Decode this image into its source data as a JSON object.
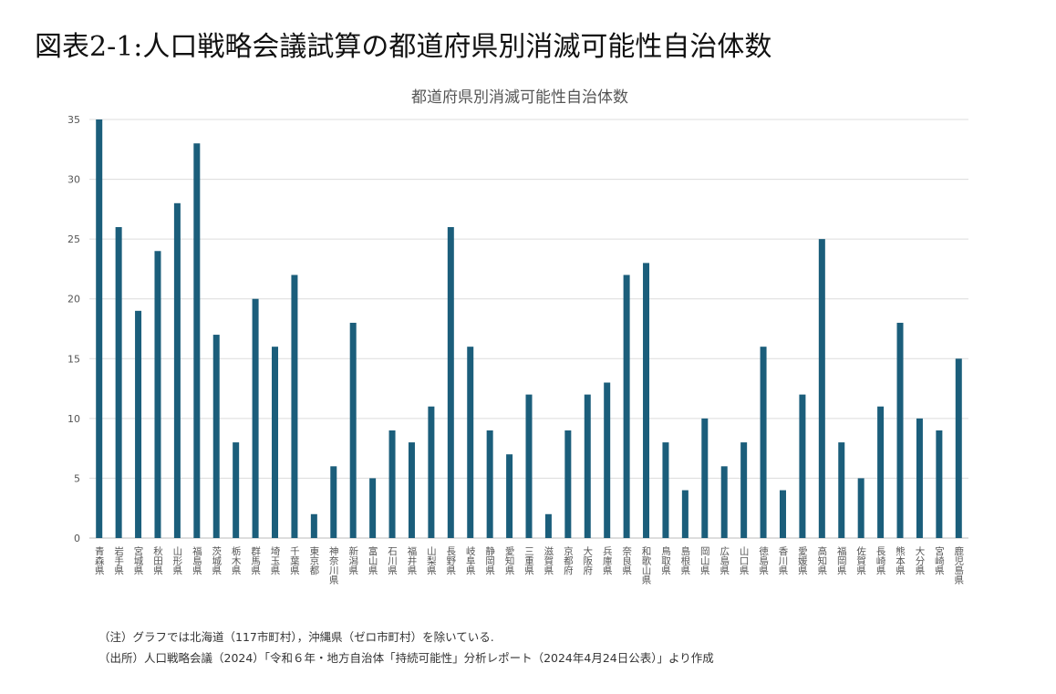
{
  "figure_title": "図表2-1:人口戦略会議試算の都道府県別消滅可能性自治体数",
  "notes": {
    "note": "（注）グラフでは北海道（117市町村），沖縄県（ゼロ市町村）を除いている.",
    "source": "（出所）人口戦略会議（2024）「令和６年・地方自治体「持続可能性」分析レポート（2024年4月24日公表）」より作成"
  },
  "colors": {
    "bar": "#1b5e7b",
    "grid": "#dcdcdc",
    "axis_text": "#555555"
  },
  "chart_data": {
    "type": "bar",
    "title": "都道府県別消滅可能性自治体数",
    "xlabel": "",
    "ylabel": "",
    "ylim": [
      0,
      35
    ],
    "yticks": [
      0,
      5,
      10,
      15,
      20,
      25,
      30,
      35
    ],
    "grid": true,
    "legend": "none",
    "categories": [
      "青森県",
      "岩手県",
      "宮城県",
      "秋田県",
      "山形県",
      "福島県",
      "茨城県",
      "栃木県",
      "群馬県",
      "埼玉県",
      "千葉県",
      "東京都",
      "神奈川県",
      "新潟県",
      "富山県",
      "石川県",
      "福井県",
      "山梨県",
      "長野県",
      "岐阜県",
      "静岡県",
      "愛知県",
      "三重県",
      "滋賀県",
      "京都府",
      "大阪府",
      "兵庫県",
      "奈良県",
      "和歌山県",
      "鳥取県",
      "島根県",
      "岡山県",
      "広島県",
      "山口県",
      "徳島県",
      "香川県",
      "愛媛県",
      "高知県",
      "福岡県",
      "佐賀県",
      "長崎県",
      "熊本県",
      "大分県",
      "宮崎県",
      "鹿児島県"
    ],
    "values": [
      35,
      26,
      19,
      24,
      28,
      33,
      17,
      8,
      20,
      16,
      22,
      2,
      6,
      18,
      5,
      9,
      8,
      11,
      26,
      16,
      9,
      7,
      12,
      2,
      9,
      12,
      13,
      22,
      23,
      8,
      4,
      10,
      6,
      8,
      16,
      4,
      12,
      25,
      8,
      5,
      11,
      18,
      10,
      9,
      15
    ]
  }
}
